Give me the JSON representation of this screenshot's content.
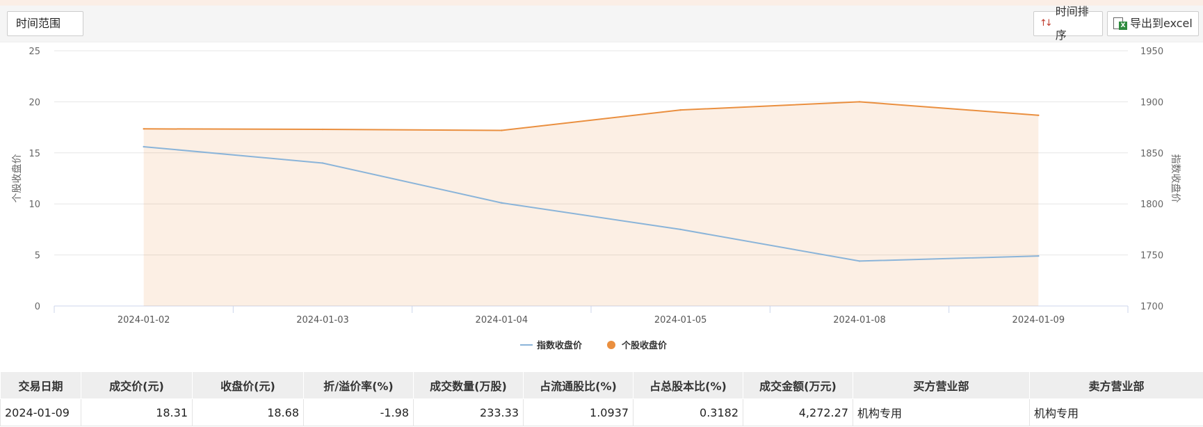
{
  "toolbar": {
    "range_label": "时间范围",
    "sort_label": "时间排序",
    "export_label": "导出到excel",
    "sort_icon": "sort-arrows-icon",
    "export_icon": "excel-export-icon"
  },
  "chart_data": {
    "type": "line",
    "categories": [
      "2024-01-02",
      "2024-01-03",
      "2024-01-04",
      "2024-01-05",
      "2024-01-08",
      "2024-01-09"
    ],
    "series": [
      {
        "name": "指数收盘价",
        "axis": "right",
        "color": "#8ab4d9",
        "values": [
          1856,
          1840,
          1801,
          1775,
          1744,
          1749
        ]
      },
      {
        "name": "个股收盘价",
        "axis": "left",
        "color": "#ea8f3f",
        "area": true,
        "values": [
          17.35,
          17.3,
          17.2,
          19.2,
          20.0,
          18.68
        ]
      }
    ],
    "y_left": {
      "label": "个股收盘价",
      "ticks": [
        0,
        5,
        10,
        15,
        20,
        25
      ],
      "range": [
        0,
        25
      ]
    },
    "y_right": {
      "label": "指数收盘价",
      "ticks": [
        1700,
        1750,
        1800,
        1850,
        1900,
        1950
      ],
      "range": [
        1700,
        1950
      ]
    },
    "grid": true,
    "legend_position": "bottom-center"
  },
  "table": {
    "headers": [
      "交易日期",
      "成交价(元)",
      "收盘价(元)",
      "折/溢价率(%)",
      "成交数量(万股)",
      "占流通股比(%)",
      "占总股本比(%)",
      "成交金额(万元)",
      "买方营业部",
      "卖方营业部"
    ],
    "rows": [
      [
        "2024-01-09",
        "18.31",
        "18.68",
        "-1.98",
        "233.33",
        "1.0937",
        "0.3182",
        "4,272.27",
        "机构专用",
        "机构专用"
      ]
    ]
  }
}
